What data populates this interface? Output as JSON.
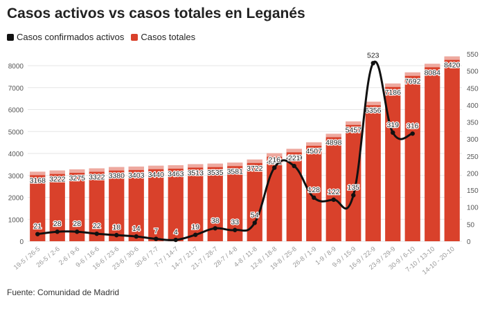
{
  "title": "Casos activos vs casos totales en Leganés",
  "legend": [
    {
      "label": "Casos confirmados activos",
      "color": "#111111"
    },
    {
      "label": "Casos totales",
      "color": "#d9412b"
    }
  ],
  "source": "Fuente: Comunidad de Madrid",
  "chart_data": {
    "type": "bar",
    "categories": [
      "19-5 / 26-5",
      "26-5 / 2-6",
      "2-6 / 9-6",
      "9-6 / 16-6",
      "16-6 / 23-6",
      "23-6 / 30-6",
      "30-6 / 7-7",
      "7-7 / 14-7",
      "14-7 / 21-7",
      "21-7 / 28-7",
      "28-7 / 4-8",
      "4-8 / 11-8",
      "12-8 / 18-8",
      "19-8 / 25-8",
      "26-8 / 1-9",
      "1-9 / 8-9",
      "9-9 / 15-9",
      "16-9 / 22-9",
      "23-9 / 29-9",
      "30-9 / 6-10",
      "7-10 / 13-10",
      "14-10 - 20-10"
    ],
    "series": [
      {
        "name": "Casos totales",
        "type": "bar",
        "axis": "left",
        "color": "#d9412b",
        "values": [
          3168,
          3222,
          3275,
          3322,
          3380,
          3403,
          3440,
          3463,
          3513,
          3535,
          3581,
          3722,
          4011,
          4209,
          4507,
          4898,
          5457,
          6356,
          7186,
          7692,
          8084,
          8420
        ]
      },
      {
        "name": "Casos confirmados activos",
        "type": "line",
        "axis": "right",
        "color": "#111111",
        "values": [
          21,
          28,
          28,
          22,
          18,
          14,
          7,
          4,
          19,
          38,
          33,
          54,
          216,
          221,
          128,
          122,
          135,
          523,
          319,
          316,
          null,
          null
        ]
      }
    ],
    "left_axis": {
      "min": 0,
      "max": 8000,
      "ticks": [
        0,
        1000,
        2000,
        3000,
        4000,
        5000,
        6000,
        7000,
        8000
      ]
    },
    "right_axis": {
      "min": 0,
      "max": 550,
      "ticks": [
        0,
        50,
        100,
        150,
        200,
        250,
        300,
        350,
        400,
        450,
        500,
        550
      ]
    },
    "grid": true
  }
}
